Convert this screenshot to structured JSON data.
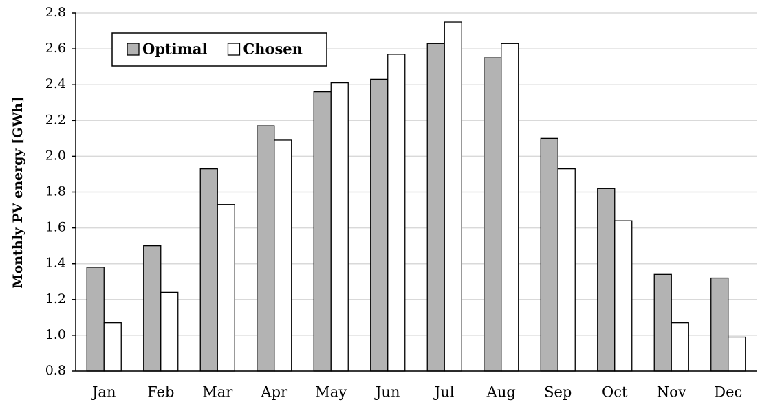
{
  "chart_data": {
    "type": "bar",
    "y_label": "Monthly PV energy [GWh]",
    "categories": [
      "Jan",
      "Feb",
      "Mar",
      "Apr",
      "May",
      "Jun",
      "Jul",
      "Aug",
      "Sep",
      "Oct",
      "Nov",
      "Dec"
    ],
    "series": [
      {
        "name": "Optimal",
        "color": "#b3b3b3",
        "values": [
          1.38,
          1.5,
          1.93,
          2.17,
          2.36,
          2.43,
          2.63,
          2.55,
          2.1,
          1.82,
          1.34,
          1.32
        ]
      },
      {
        "name": "Chosen",
        "color": "#ffffff",
        "values": [
          1.07,
          1.24,
          1.73,
          2.09,
          2.41,
          2.57,
          2.75,
          2.63,
          1.93,
          1.64,
          1.07,
          0.99
        ]
      }
    ],
    "ylim": [
      0.8,
      2.8
    ],
    "yticks": [
      0.8,
      {
        "value": 1.0,
        "label": "1.0"
      },
      1.2,
      1.4,
      1.6,
      1.8,
      {
        "value": 2.0,
        "label": "2.0"
      },
      2.2,
      2.4,
      2.6,
      2.8
    ],
    "grid": true,
    "legend": "upper left"
  }
}
